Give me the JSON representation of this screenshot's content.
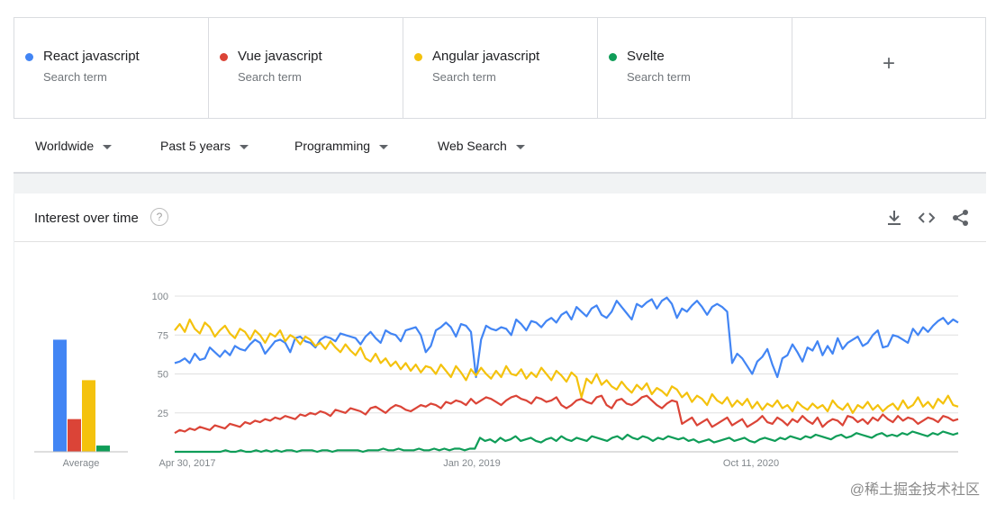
{
  "terms": [
    {
      "name": "React javascript",
      "sub": "Search term",
      "color": "#4285f4"
    },
    {
      "name": "Vue javascript",
      "sub": "Search term",
      "color": "#db4437"
    },
    {
      "name": "Angular javascript",
      "sub": "Search term",
      "color": "#f4c20d"
    },
    {
      "name": "Svelte",
      "sub": "Search term",
      "color": "#0f9d58"
    }
  ],
  "add_icon": "plus-icon",
  "filters": {
    "region": "Worldwide",
    "time": "Past 5 years",
    "category": "Programming",
    "search_type": "Web Search"
  },
  "card": {
    "title": "Interest over time",
    "icons": [
      "download-icon",
      "embed-code-icon",
      "share-icon"
    ]
  },
  "watermark": "@稀土掘金技术社区",
  "chart_data": {
    "type": "line",
    "title": "Interest over time",
    "ylim": [
      0,
      100
    ],
    "yticks": [
      25,
      50,
      75,
      100
    ],
    "xtick_labels": [
      "Apr 30, 2017",
      "Jan 20, 2019",
      "Oct 11, 2020"
    ],
    "average_label": "Average",
    "averages": [
      72,
      21,
      46,
      4
    ],
    "series": [
      {
        "name": "React javascript",
        "color": "#4285f4",
        "values": [
          57,
          58,
          60,
          57,
          63,
          59,
          60,
          67,
          64,
          61,
          65,
          62,
          68,
          66,
          65,
          69,
          72,
          70,
          63,
          67,
          71,
          72,
          70,
          64,
          73,
          74,
          71,
          70,
          67,
          72,
          74,
          73,
          71,
          76,
          75,
          74,
          73,
          69,
          74,
          77,
          73,
          70,
          78,
          76,
          75,
          71,
          78,
          79,
          80,
          75,
          64,
          68,
          78,
          80,
          83,
          80,
          74,
          82,
          81,
          77,
          48,
          72,
          81,
          79,
          78,
          80,
          79,
          75,
          85,
          82,
          78,
          84,
          83,
          80,
          84,
          86,
          83,
          88,
          90,
          85,
          93,
          90,
          87,
          92,
          94,
          88,
          86,
          90,
          97,
          93,
          89,
          85,
          95,
          93,
          96,
          98,
          92,
          97,
          99,
          95,
          86,
          92,
          90,
          94,
          97,
          93,
          88,
          93,
          95,
          93,
          90,
          57,
          63,
          60,
          55,
          50,
          58,
          61,
          66,
          56,
          48,
          60,
          62,
          69,
          64,
          58,
          67,
          65,
          71,
          62,
          68,
          63,
          73,
          66,
          70,
          72,
          74,
          68,
          70,
          75,
          78,
          67,
          68,
          75,
          74,
          72,
          70,
          79,
          75,
          80,
          77,
          81,
          84,
          86,
          82,
          85,
          83
        ]
      },
      {
        "name": "Vue javascript",
        "color": "#db4437",
        "values": [
          12,
          14,
          13,
          15,
          14,
          16,
          15,
          14,
          17,
          16,
          15,
          18,
          17,
          16,
          19,
          18,
          20,
          19,
          21,
          20,
          22,
          21,
          23,
          22,
          21,
          24,
          23,
          25,
          24,
          26,
          25,
          23,
          27,
          26,
          25,
          28,
          27,
          26,
          24,
          28,
          29,
          27,
          25,
          28,
          30,
          29,
          27,
          26,
          28,
          30,
          29,
          31,
          30,
          28,
          32,
          31,
          33,
          32,
          30,
          34,
          31,
          33,
          35,
          34,
          32,
          30,
          33,
          35,
          36,
          34,
          33,
          31,
          35,
          34,
          32,
          33,
          35,
          30,
          28,
          30,
          33,
          34,
          32,
          31,
          35,
          36,
          30,
          28,
          33,
          34,
          31,
          30,
          32,
          35,
          36,
          33,
          30,
          28,
          31,
          33,
          32,
          18,
          20,
          22,
          17,
          19,
          21,
          16,
          18,
          20,
          22,
          17,
          19,
          21,
          16,
          18,
          20,
          23,
          19,
          18,
          22,
          20,
          17,
          21,
          19,
          23,
          20,
          18,
          22,
          16,
          19,
          21,
          20,
          17,
          23,
          22,
          19,
          21,
          18,
          22,
          20,
          24,
          21,
          19,
          23,
          20,
          22,
          21,
          18,
          20,
          22,
          21,
          19,
          23,
          22,
          20,
          21
        ]
      },
      {
        "name": "Angular javascript",
        "color": "#f4c20d",
        "values": [
          78,
          82,
          77,
          85,
          79,
          76,
          83,
          80,
          74,
          78,
          81,
          76,
          73,
          79,
          77,
          72,
          78,
          75,
          70,
          76,
          74,
          78,
          71,
          75,
          73,
          69,
          74,
          72,
          68,
          70,
          66,
          71,
          67,
          64,
          69,
          65,
          62,
          67,
          60,
          58,
          63,
          57,
          60,
          55,
          58,
          53,
          57,
          52,
          56,
          51,
          55,
          54,
          50,
          56,
          52,
          48,
          55,
          51,
          46,
          53,
          49,
          54,
          50,
          47,
          52,
          48,
          55,
          50,
          49,
          53,
          47,
          51,
          48,
          54,
          50,
          46,
          52,
          49,
          45,
          51,
          48,
          35,
          47,
          44,
          50,
          43,
          46,
          42,
          40,
          45,
          41,
          38,
          43,
          40,
          44,
          37,
          41,
          39,
          36,
          42,
          40,
          35,
          38,
          32,
          36,
          34,
          30,
          37,
          33,
          31,
          35,
          29,
          33,
          30,
          34,
          28,
          32,
          27,
          31,
          29,
          33,
          28,
          30,
          26,
          32,
          29,
          27,
          31,
          28,
          30,
          26,
          33,
          29,
          27,
          31,
          25,
          30,
          28,
          32,
          27,
          30,
          26,
          29,
          31,
          27,
          33,
          28,
          30,
          35,
          29,
          32,
          28,
          34,
          31,
          36,
          30,
          29
        ]
      },
      {
        "name": "Svelte",
        "color": "#0f9d58",
        "values": [
          0,
          0,
          0,
          0,
          0,
          0,
          0,
          0,
          0,
          0,
          1,
          0,
          0,
          1,
          0,
          0,
          1,
          0,
          1,
          0,
          1,
          0,
          1,
          1,
          0,
          1,
          1,
          1,
          0,
          1,
          1,
          0,
          1,
          1,
          1,
          1,
          1,
          0,
          1,
          1,
          1,
          2,
          1,
          1,
          2,
          1,
          1,
          1,
          2,
          1,
          1,
          2,
          1,
          2,
          1,
          2,
          2,
          1,
          2,
          2,
          9,
          7,
          8,
          6,
          9,
          7,
          8,
          10,
          7,
          8,
          9,
          7,
          6,
          8,
          9,
          7,
          10,
          8,
          7,
          9,
          8,
          7,
          10,
          9,
          8,
          7,
          9,
          10,
          8,
          11,
          9,
          8,
          10,
          9,
          7,
          9,
          8,
          10,
          9,
          8,
          9,
          7,
          8,
          6,
          7,
          8,
          6,
          7,
          8,
          9,
          7,
          8,
          9,
          7,
          6,
          8,
          9,
          8,
          7,
          9,
          8,
          10,
          9,
          8,
          10,
          9,
          11,
          10,
          9,
          8,
          10,
          11,
          9,
          10,
          12,
          11,
          10,
          9,
          11,
          12,
          10,
          11,
          10,
          12,
          11,
          13,
          12,
          11,
          10,
          12,
          11,
          13,
          12,
          11,
          12
        ]
      }
    ]
  }
}
